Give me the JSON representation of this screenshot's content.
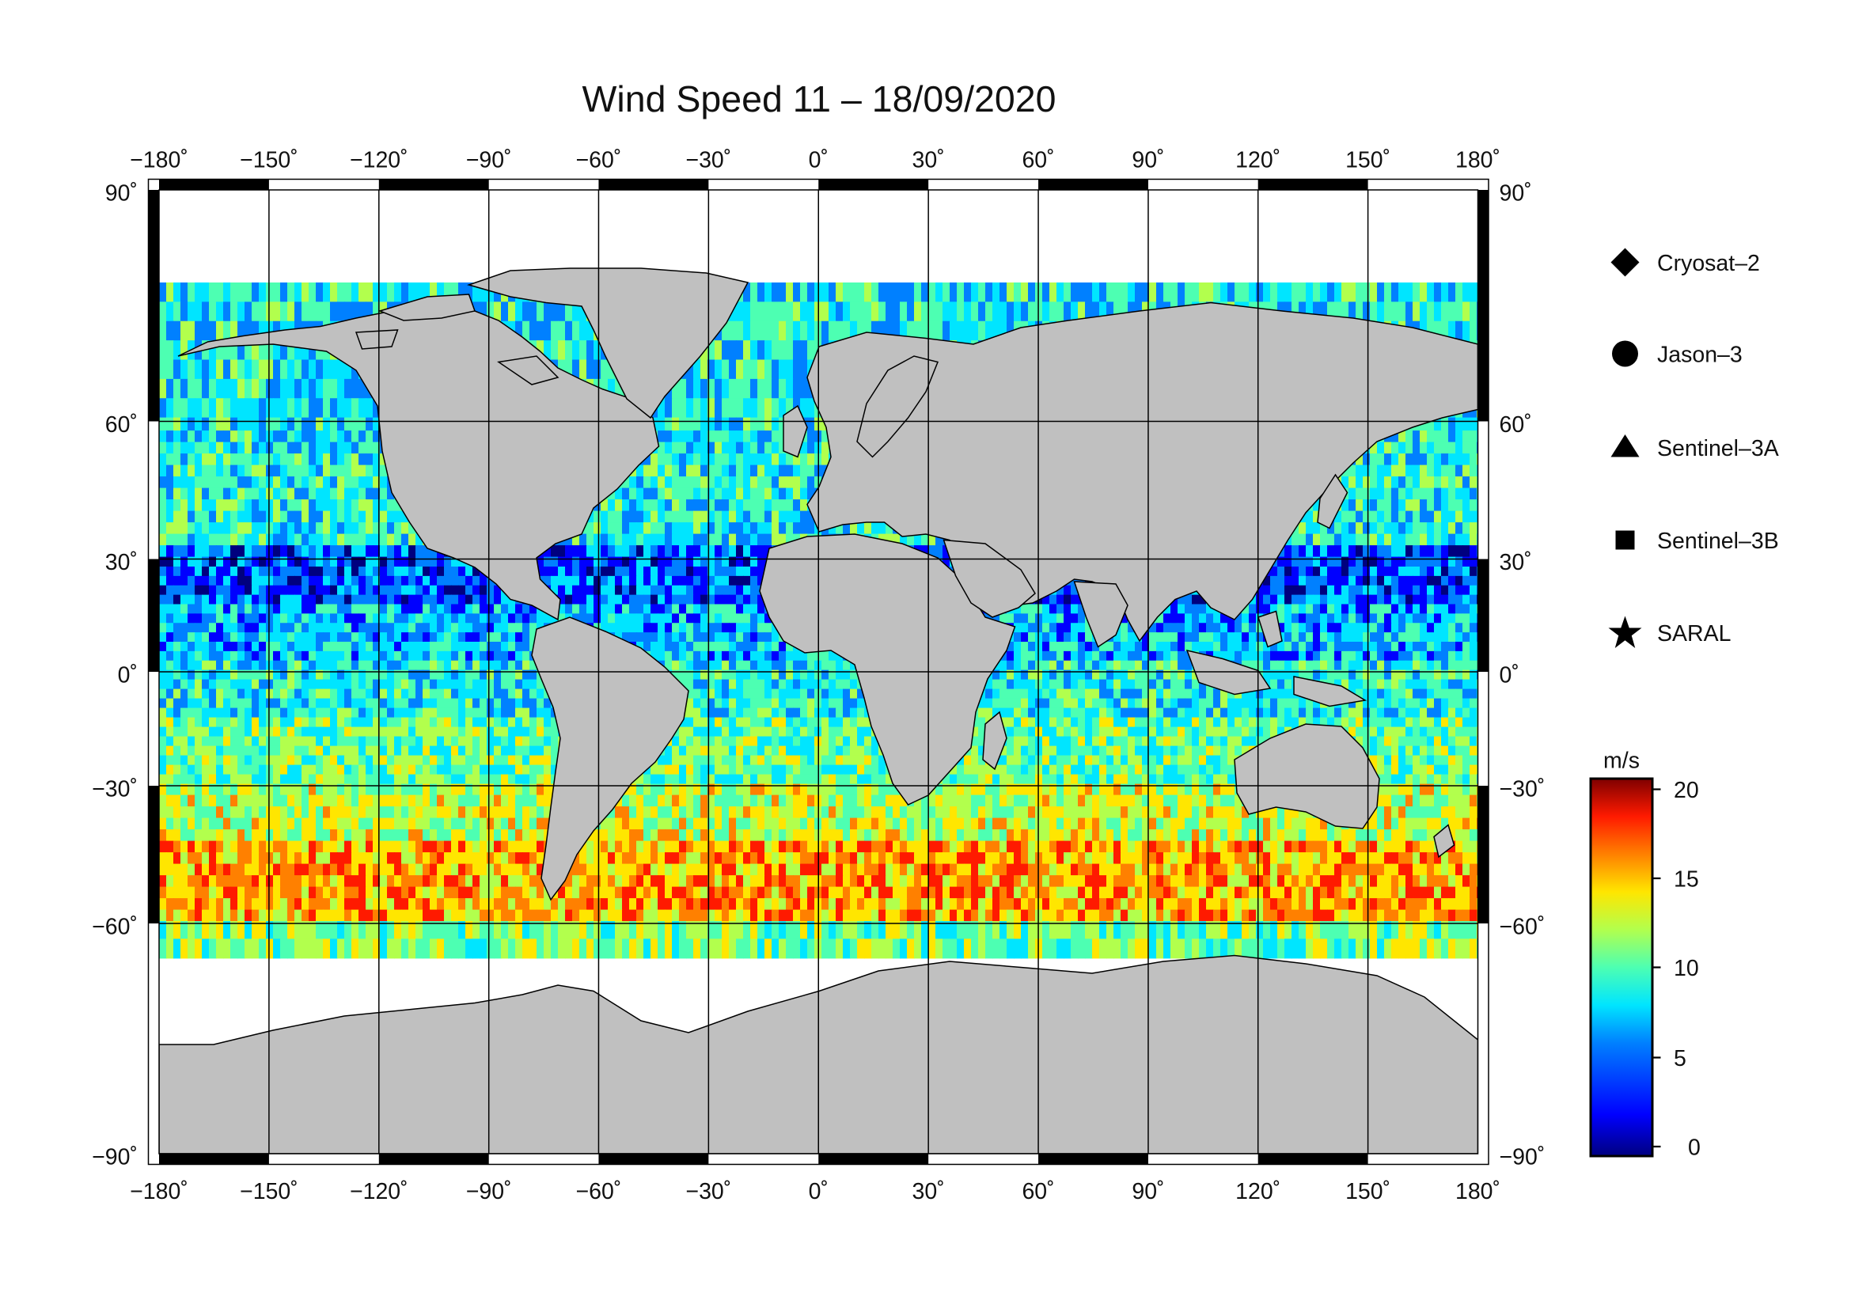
{
  "title": "Wind Speed 11 – 18/09/2020",
  "axes": {
    "x_ticks": [
      "−180˚",
      "−150˚",
      "−120˚",
      "−90˚",
      "−60˚",
      "−30˚",
      "0˚",
      "30˚",
      "60˚",
      "90˚",
      "120˚",
      "150˚",
      "180˚"
    ],
    "y_ticks_left": [
      "90˚",
      "60˚",
      "30˚",
      "0˚",
      "−30˚",
      "−60˚",
      "−90˚"
    ],
    "y_ticks_right": [
      "90˚",
      "60˚",
      "30˚",
      "0˚",
      "−30˚",
      "−60˚",
      "−90˚"
    ]
  },
  "legend": {
    "items": [
      {
        "label": "Cryosat–2",
        "marker": "diamond"
      },
      {
        "label": "Jason–3",
        "marker": "circle"
      },
      {
        "label": "Sentinel–3A",
        "marker": "triangle"
      },
      {
        "label": "Sentinel–3B",
        "marker": "square"
      },
      {
        "label": "SARAL",
        "marker": "star"
      }
    ]
  },
  "colorbar": {
    "unit": "m/s",
    "min": 0,
    "max": 20,
    "ticks": [
      "0",
      "5",
      "10",
      "15",
      "20"
    ],
    "colors": [
      "#00007f",
      "#0000ff",
      "#0080ff",
      "#00e5ff",
      "#4dffb2",
      "#b2ff4d",
      "#ffe600",
      "#ff8000",
      "#ff1a00",
      "#7f0000"
    ]
  },
  "colors": {
    "land": "#c0c0c0",
    "ocean_nodata": "#ffffff",
    "grid": "#000000"
  }
}
